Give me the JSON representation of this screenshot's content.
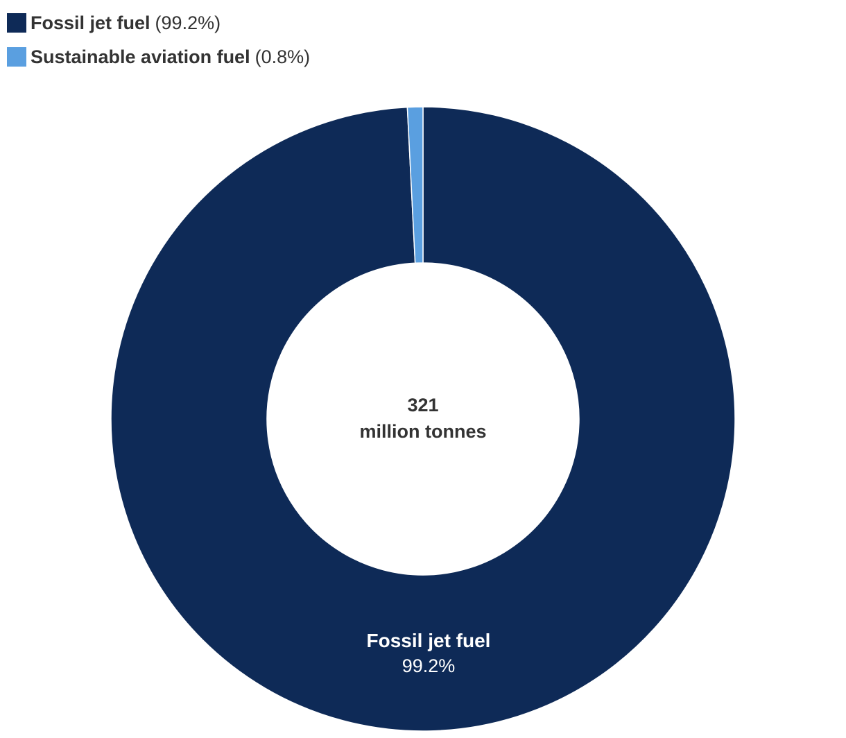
{
  "chart_data": {
    "type": "pie",
    "donut": true,
    "legend_position": "top-left",
    "slices": [
      {
        "name": "Fossil jet fuel",
        "value": 99.2,
        "percent_label": "(99.2%)",
        "inner_label_pct": "99.2%",
        "color": "#0e2a57"
      },
      {
        "name": "Sustainable aviation fuel",
        "value": 0.8,
        "percent_label": "(0.8%)",
        "color": "#5a9fe0"
      }
    ],
    "center_value": "321",
    "center_unit": "million tonnes"
  }
}
